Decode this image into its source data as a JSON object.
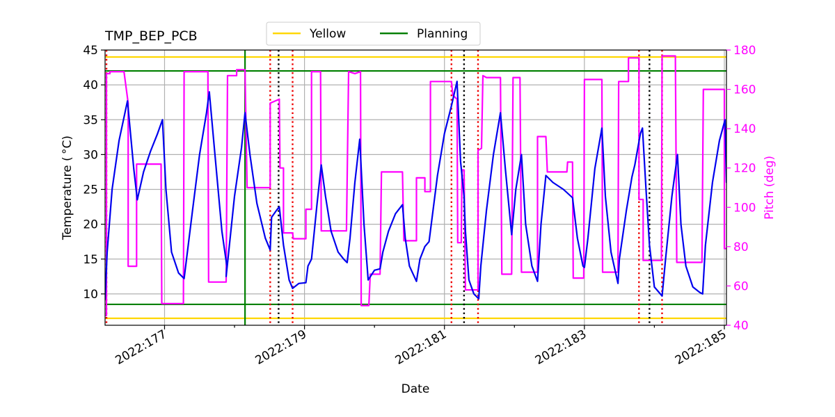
{
  "chart_data": {
    "type": "line",
    "title": "TMP_BEP_PCB",
    "xlabel": "Date",
    "ylabel": "Temperature ($^\\circ$C)",
    "ylabel_display": "Temperature ( °C)",
    "ylabel_right": "Pitch (deg)",
    "xlim": [
      176.15,
      185.03
    ],
    "ylim": [
      5.5,
      45
    ],
    "ylim_right": [
      40,
      180
    ],
    "xticks": [
      {
        "value": 177,
        "label": "2022:177"
      },
      {
        "value": 179,
        "label": "2022:179"
      },
      {
        "value": 181,
        "label": "2022:181"
      },
      {
        "value": 183,
        "label": "2022:183"
      },
      {
        "value": 185,
        "label": "2022:185"
      }
    ],
    "yticks": [
      10,
      15,
      20,
      25,
      30,
      35,
      40,
      45
    ],
    "yticks_right": [
      40,
      60,
      80,
      100,
      120,
      140,
      160,
      180
    ],
    "grid": true,
    "legend": {
      "placement": "top-center-outside",
      "entries": [
        {
          "label": "Yellow",
          "color": "#ffd700"
        },
        {
          "label": "Planning",
          "color": "#008000"
        }
      ]
    },
    "limits": {
      "yellow": [
        6.5,
        44.0
      ],
      "planning": [
        8.5,
        42.0
      ]
    },
    "planning_vertical_line": 178.15,
    "red_dotted_lines": [
      176.17,
      178.51,
      178.83,
      181.1,
      181.48,
      183.78,
      184.11
    ],
    "black_dotted_lines": [
      178.63,
      181.28,
      183.93
    ],
    "colors": {
      "temperature": "#0000ee",
      "pitch": "#ff00ff",
      "yellow": "#ffd700",
      "planning": "#008000",
      "red_line": "#ee0000",
      "black_line": "#000000",
      "grid": "#b0b0b0"
    },
    "series": [
      {
        "name": "Temperature",
        "axis": "left",
        "points": [
          [
            176.15,
            9.2
          ],
          [
            176.18,
            16
          ],
          [
            176.25,
            25
          ],
          [
            176.35,
            32
          ],
          [
            176.47,
            37.7
          ],
          [
            176.56,
            28
          ],
          [
            176.61,
            23.5
          ],
          [
            176.7,
            27.5
          ],
          [
            176.8,
            30.5
          ],
          [
            176.9,
            33
          ],
          [
            176.97,
            35
          ],
          [
            177.02,
            25
          ],
          [
            177.1,
            16
          ],
          [
            177.2,
            13
          ],
          [
            177.28,
            12.2
          ],
          [
            177.4,
            22
          ],
          [
            177.5,
            30
          ],
          [
            177.6,
            36
          ],
          [
            177.64,
            39
          ],
          [
            177.72,
            30
          ],
          [
            177.82,
            19
          ],
          [
            177.89,
            14
          ],
          [
            177.88,
            12.5
          ],
          [
            178.0,
            24
          ],
          [
            178.1,
            31
          ],
          [
            178.15,
            36
          ],
          [
            178.22,
            30
          ],
          [
            178.32,
            23
          ],
          [
            178.44,
            18
          ],
          [
            178.51,
            16.3
          ],
          [
            178.53,
            21
          ],
          [
            178.6,
            22
          ],
          [
            178.64,
            22.5
          ],
          [
            178.7,
            17
          ],
          [
            178.78,
            12
          ],
          [
            178.83,
            10.8
          ],
          [
            178.92,
            11.5
          ],
          [
            179.02,
            11.6
          ],
          [
            179.05,
            14
          ],
          [
            179.1,
            15
          ],
          [
            179.18,
            23
          ],
          [
            179.24,
            28.5
          ],
          [
            179.3,
            24
          ],
          [
            179.38,
            19
          ],
          [
            179.48,
            16
          ],
          [
            179.56,
            15
          ],
          [
            179.61,
            14.5
          ],
          [
            179.65,
            18
          ],
          [
            179.72,
            26
          ],
          [
            179.79,
            32.2
          ],
          [
            179.85,
            20
          ],
          [
            179.91,
            12
          ],
          [
            180.0,
            13.4
          ],
          [
            180.08,
            13.6
          ],
          [
            180.12,
            16
          ],
          [
            180.2,
            19
          ],
          [
            180.3,
            21.5
          ],
          [
            180.4,
            22.8
          ],
          [
            180.44,
            18
          ],
          [
            180.5,
            14
          ],
          [
            180.6,
            11.8
          ],
          [
            180.65,
            15
          ],
          [
            180.72,
            16.8
          ],
          [
            180.78,
            17.5
          ],
          [
            180.9,
            27
          ],
          [
            181.0,
            33
          ],
          [
            181.1,
            37
          ],
          [
            181.18,
            40.5
          ],
          [
            181.23,
            29
          ],
          [
            181.28,
            24
          ],
          [
            181.3,
            19
          ],
          [
            181.35,
            12
          ],
          [
            181.42,
            10
          ],
          [
            181.49,
            9.3
          ],
          [
            181.52,
            14
          ],
          [
            181.6,
            22
          ],
          [
            181.7,
            30
          ],
          [
            181.8,
            36
          ],
          [
            181.87,
            28
          ],
          [
            181.96,
            18.5
          ],
          [
            182.02,
            25
          ],
          [
            182.1,
            30
          ],
          [
            182.16,
            20
          ],
          [
            182.25,
            14
          ],
          [
            182.33,
            11.8
          ],
          [
            182.38,
            20
          ],
          [
            182.45,
            27
          ],
          [
            182.55,
            26
          ],
          [
            182.7,
            25
          ],
          [
            182.83,
            23.8
          ],
          [
            182.9,
            18
          ],
          [
            182.98,
            14
          ],
          [
            183.0,
            13.8
          ],
          [
            183.05,
            18
          ],
          [
            183.15,
            28
          ],
          [
            183.25,
            33.8
          ],
          [
            183.3,
            24
          ],
          [
            183.38,
            16
          ],
          [
            183.48,
            11.5
          ],
          [
            183.5,
            15
          ],
          [
            183.6,
            22
          ],
          [
            183.68,
            26.8
          ],
          [
            183.72,
            28.5
          ],
          [
            183.8,
            33
          ],
          [
            183.83,
            33.8
          ],
          [
            183.88,
            25
          ],
          [
            183.93,
            17
          ],
          [
            184.0,
            11
          ],
          [
            184.11,
            9.7
          ],
          [
            184.16,
            15
          ],
          [
            184.25,
            24
          ],
          [
            184.33,
            30
          ],
          [
            184.38,
            20
          ],
          [
            184.45,
            14
          ],
          [
            184.55,
            11
          ],
          [
            184.65,
            10.2
          ],
          [
            184.69,
            10
          ],
          [
            184.73,
            17
          ],
          [
            184.83,
            26
          ],
          [
            184.93,
            32
          ],
          [
            185.01,
            35
          ],
          [
            185.03,
            26
          ]
        ]
      },
      {
        "name": "Pitch",
        "axis": "right",
        "points": [
          [
            176.15,
            45
          ],
          [
            176.17,
            45
          ],
          [
            176.17,
            168
          ],
          [
            176.22,
            168
          ],
          [
            176.22,
            169
          ],
          [
            176.42,
            169
          ],
          [
            176.48,
            153
          ],
          [
            176.48,
            70
          ],
          [
            176.6,
            70
          ],
          [
            176.6,
            122
          ],
          [
            176.95,
            122
          ],
          [
            176.96,
            51
          ],
          [
            177.27,
            51
          ],
          [
            177.28,
            169
          ],
          [
            177.62,
            169
          ],
          [
            177.63,
            62
          ],
          [
            177.88,
            62
          ],
          [
            177.9,
            167
          ],
          [
            178.03,
            167
          ],
          [
            178.03,
            170
          ],
          [
            178.15,
            170
          ],
          [
            178.18,
            110
          ],
          [
            178.51,
            110
          ],
          [
            178.51,
            153
          ],
          [
            178.64,
            155
          ],
          [
            178.65,
            120
          ],
          [
            178.7,
            120
          ],
          [
            178.7,
            87
          ],
          [
            178.83,
            87
          ],
          [
            178.84,
            84
          ],
          [
            179.02,
            84
          ],
          [
            179.02,
            99
          ],
          [
            179.1,
            99
          ],
          [
            179.1,
            169
          ],
          [
            179.23,
            169
          ],
          [
            179.24,
            88
          ],
          [
            179.6,
            88
          ],
          [
            179.63,
            169
          ],
          [
            179.72,
            168
          ],
          [
            179.8,
            169
          ],
          [
            179.81,
            50
          ],
          [
            179.92,
            50
          ],
          [
            179.94,
            66
          ],
          [
            180.08,
            66
          ],
          [
            180.1,
            118
          ],
          [
            180.4,
            118
          ],
          [
            180.42,
            83
          ],
          [
            180.6,
            83
          ],
          [
            180.6,
            115
          ],
          [
            180.72,
            115
          ],
          [
            180.72,
            108
          ],
          [
            180.8,
            108
          ],
          [
            180.8,
            164
          ],
          [
            181.1,
            164
          ],
          [
            181.12,
            157
          ],
          [
            181.18,
            155
          ],
          [
            181.19,
            82
          ],
          [
            181.24,
            82
          ],
          [
            181.25,
            119
          ],
          [
            181.28,
            119
          ],
          [
            181.3,
            58
          ],
          [
            181.48,
            58
          ],
          [
            181.48,
            129
          ],
          [
            181.53,
            130
          ],
          [
            181.55,
            167
          ],
          [
            181.6,
            166
          ],
          [
            181.7,
            166
          ],
          [
            181.8,
            166
          ],
          [
            181.82,
            66
          ],
          [
            181.96,
            66
          ],
          [
            181.98,
            166
          ],
          [
            182.08,
            166
          ],
          [
            182.1,
            67
          ],
          [
            182.33,
            67
          ],
          [
            182.33,
            136
          ],
          [
            182.45,
            136
          ],
          [
            182.47,
            118
          ],
          [
            182.75,
            118
          ],
          [
            182.76,
            123
          ],
          [
            182.83,
            123
          ],
          [
            182.84,
            64
          ],
          [
            182.99,
            64
          ],
          [
            183.0,
            165
          ],
          [
            183.25,
            165
          ],
          [
            183.26,
            67
          ],
          [
            183.48,
            67
          ],
          [
            183.49,
            164
          ],
          [
            183.63,
            164
          ],
          [
            183.63,
            176
          ],
          [
            183.78,
            176
          ],
          [
            183.78,
            104
          ],
          [
            183.84,
            104
          ],
          [
            183.84,
            73
          ],
          [
            184.1,
            73
          ],
          [
            184.11,
            177
          ],
          [
            184.3,
            177
          ],
          [
            184.32,
            72
          ],
          [
            184.68,
            72
          ],
          [
            184.7,
            160
          ],
          [
            185.0,
            160
          ],
          [
            185.0,
            79
          ],
          [
            185.03,
            79
          ]
        ]
      }
    ]
  }
}
